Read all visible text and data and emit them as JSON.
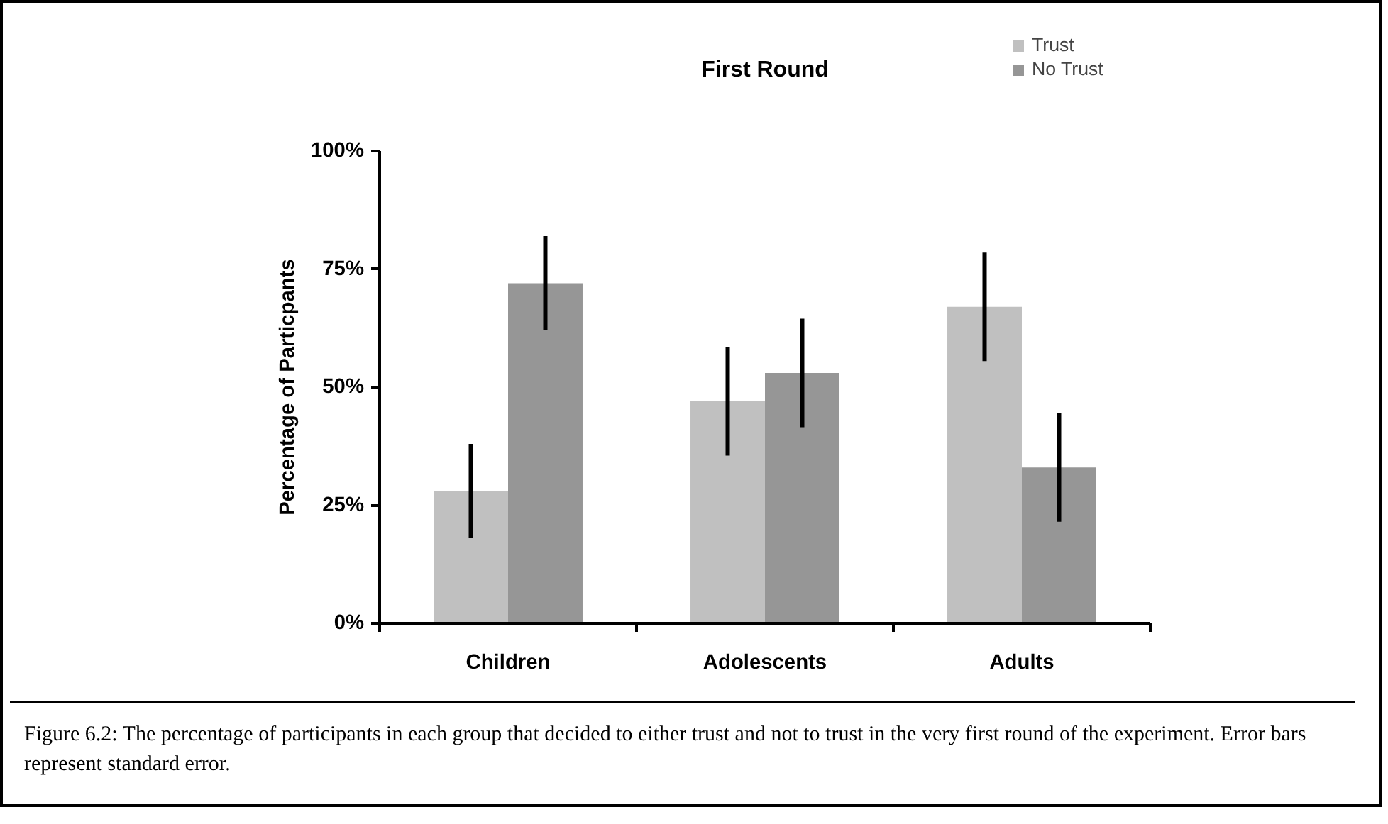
{
  "chart_data": {
    "type": "bar",
    "title": "First Round",
    "ylabel": "Percentage of Particpants",
    "categories": [
      "Children",
      "Adolescents",
      "Adults"
    ],
    "series": [
      {
        "name": "Trust",
        "color": "#c0c0c0",
        "values": [
          28,
          47,
          67
        ],
        "errors": [
          10,
          11.5,
          11.5
        ]
      },
      {
        "name": "No Trust",
        "color": "#969696",
        "values": [
          72,
          53,
          33
        ],
        "errors": [
          10,
          11.5,
          11.5
        ]
      }
    ],
    "ylim": [
      0,
      100
    ],
    "yticks": [
      {
        "value": 0,
        "label": "0%"
      },
      {
        "value": 25,
        "label": "25%"
      },
      {
        "value": 50,
        "label": "50%"
      },
      {
        "value": 75,
        "label": "75%"
      },
      {
        "value": 100,
        "label": "100%"
      }
    ],
    "grid": false,
    "legend": "top right",
    "annotations": [
      "Figure 6.2: The percentage of participants in each group that decided to either trust and not to trust in the very first round of the experiment. Error bars represent standard error."
    ]
  }
}
